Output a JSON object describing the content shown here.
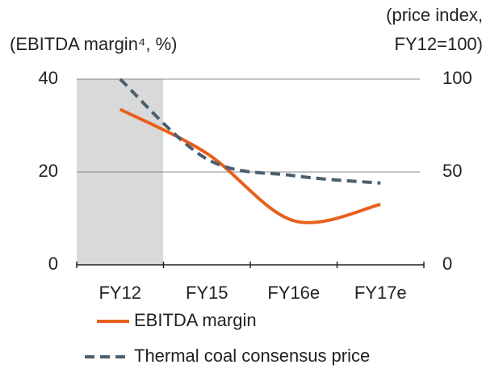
{
  "chart_data": {
    "type": "line",
    "y_label": "(EBITDA margin⁴, %)",
    "y2_label": [
      "(price index,",
      "FY12=100)"
    ],
    "categories": [
      "FY12",
      "FY15",
      "FY16e",
      "FY17e"
    ],
    "series": [
      {
        "name": "EBITDA margin",
        "color": "#e8601c",
        "values": [
          33.5,
          24,
          9.5,
          13
        ]
      },
      {
        "name": "Thermal coal consensus price",
        "color": "#4a5f6e",
        "axis": "y2",
        "dashed": true,
        "values": [
          100,
          57,
          48,
          44
        ]
      }
    ],
    "ylim": [
      0,
      40
    ],
    "yticks": [
      0,
      20,
      40
    ],
    "y2lim": [
      0,
      100
    ],
    "y2ticks": [
      0,
      50,
      100
    ],
    "grid": true
  }
}
